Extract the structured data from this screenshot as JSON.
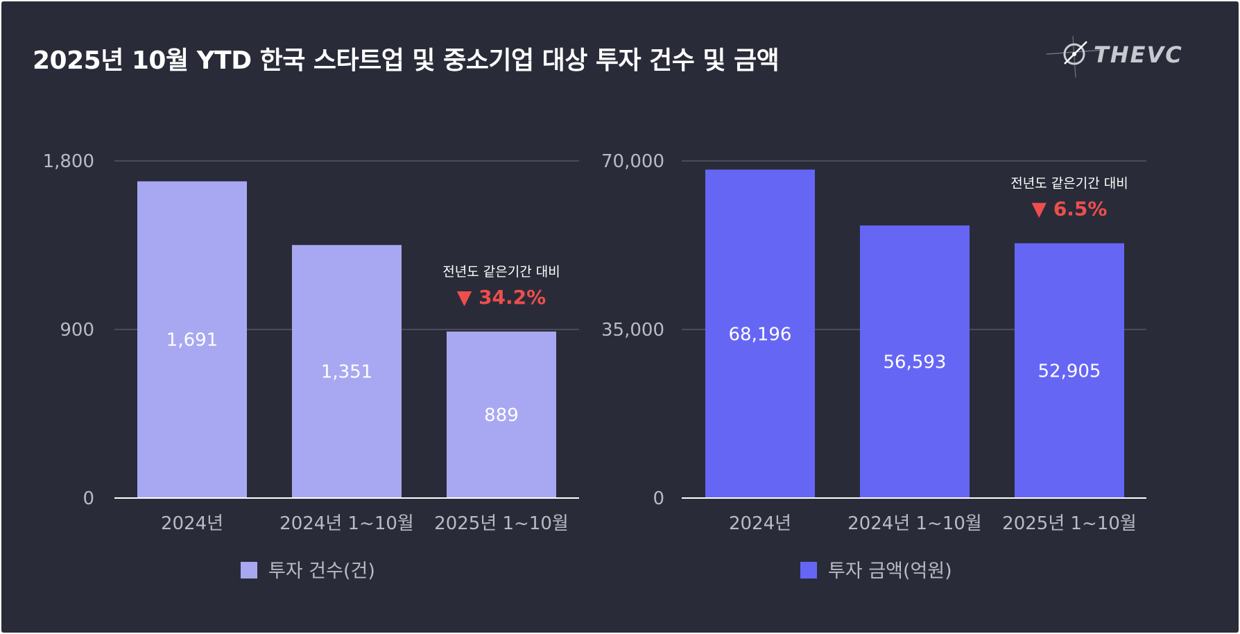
{
  "header": {
    "title": "2025년 10월 YTD 한국 스타트업 및 중소기업 대상 투자 건수 및 금액",
    "logo_text": "THEVC"
  },
  "colors": {
    "background": "#292c38",
    "text": "#ffffff",
    "axis_text": "#b9bbc4",
    "decline": "#ef4e4e"
  },
  "chart_data": [
    {
      "type": "bar",
      "categories": [
        "2024년",
        "2024년 1~10월",
        "2025년 1~10월"
      ],
      "series": [
        {
          "name": "투자 건수(건)",
          "values": [
            1691,
            1351,
            889
          ],
          "color": "#a8a8f2"
        }
      ],
      "value_labels": [
        "1,691",
        "1,351",
        "889"
      ],
      "yticks": [
        0,
        900,
        1800
      ],
      "ytick_labels": [
        "0",
        "900",
        "1,800"
      ],
      "ylim": [
        0,
        1800
      ],
      "grid": true,
      "legend_position": "bottom",
      "annotation": {
        "category_index": 2,
        "text": "전년도 같은기간 대비",
        "arrow": "▼",
        "change": "34.2%"
      }
    },
    {
      "type": "bar",
      "categories": [
        "2024년",
        "2024년 1~10월",
        "2025년 1~10월"
      ],
      "series": [
        {
          "name": "투자 금액(억원)",
          "values": [
            68196,
            56593,
            52905
          ],
          "color": "#6666f5"
        }
      ],
      "value_labels": [
        "68,196",
        "56,593",
        "52,905"
      ],
      "yticks": [
        0,
        35000,
        70000
      ],
      "ytick_labels": [
        "0",
        "35,000",
        "70,000"
      ],
      "ylim": [
        0,
        70000
      ],
      "grid": true,
      "legend_position": "bottom",
      "annotation": {
        "category_index": 2,
        "text": "전년도 같은기간 대비",
        "arrow": "▼",
        "change": "6.5%"
      }
    }
  ]
}
